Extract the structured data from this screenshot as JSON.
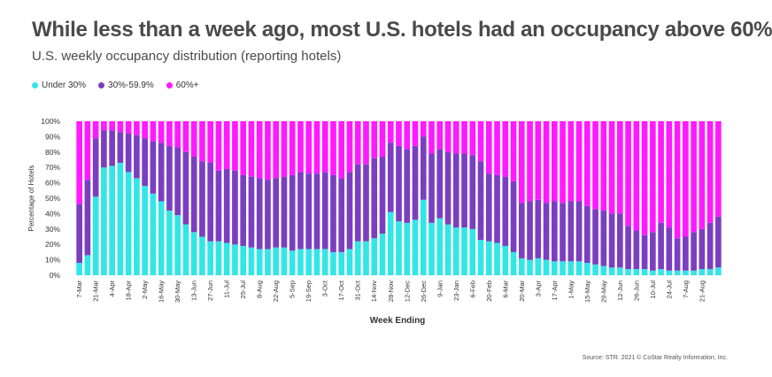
{
  "header": {
    "title": "While less than a week ago, most U.S. hotels had an occupancy above 60%",
    "subtitle": "U.S. weekly occupancy distribution (reporting hotels)"
  },
  "legend": {
    "items": [
      {
        "label": "Under 30%",
        "color": "#33e6e6"
      },
      {
        "label": "30%-59.9%",
        "color": "#7a3fbf"
      },
      {
        "label": "60%+",
        "color": "#ff1aff"
      }
    ]
  },
  "footer": {
    "source": "Source: STR. 2021 © CoStar Realty Information, Inc."
  },
  "chart_data": {
    "type": "bar",
    "stacked": true,
    "xlabel": "Week Ending",
    "ylabel": "Percentage of Hotels",
    "ylim": [
      0,
      100
    ],
    "y_ticks": [
      "0%",
      "10%",
      "20%",
      "30%",
      "40%",
      "50%",
      "60%",
      "70%",
      "80%",
      "90%",
      "100%"
    ],
    "x_tick_labels": [
      "7-Mar",
      "21-Mar",
      "4-Apr",
      "18-Apr",
      "2-May",
      "16-May",
      "30-May",
      "13-Jun",
      "27-Jun",
      "11-Jul",
      "25-Jul",
      "8-Aug",
      "22-Aug",
      "5-Sep",
      "19-Sep",
      "3-Oct",
      "17-Oct",
      "31-Oct",
      "14-Nov",
      "28-Nov",
      "12-Dec",
      "26-Dec",
      "9-Jan",
      "23-Jan",
      "6-Feb",
      "20-Feb",
      "6-Mar",
      "20-Mar",
      "3-Apr",
      "17-Apr",
      "1-May",
      "15-May",
      "29-May",
      "12-Jun",
      "26-Jun",
      "10-Jul",
      "24-Jul",
      "7-Aug",
      "21-Aug"
    ],
    "series": [
      {
        "name": "Under 30%",
        "color": "#33e6e6",
        "values": [
          8,
          13,
          51,
          70,
          71,
          73,
          67,
          63,
          58,
          53,
          48,
          42,
          39,
          33,
          28,
          25,
          22,
          22,
          21,
          20,
          19,
          18,
          17,
          17,
          18,
          18,
          16,
          17,
          17,
          17,
          17,
          15,
          15,
          17,
          22,
          22,
          24,
          27,
          41,
          35,
          34,
          36,
          49,
          34,
          37,
          33,
          31,
          31,
          30,
          23,
          22,
          21,
          19,
          15,
          11,
          10,
          11,
          10,
          9,
          9,
          9,
          9,
          8,
          7,
          6,
          5,
          5,
          4,
          4,
          4,
          3,
          4,
          3,
          3,
          3,
          3,
          4,
          4,
          5
        ]
      },
      {
        "name": "30%-59.9%",
        "color": "#7a3fbf",
        "values": [
          38,
          49,
          38,
          24,
          23,
          20,
          25,
          28,
          31,
          34,
          38,
          42,
          44,
          47,
          49,
          49,
          51,
          46,
          48,
          48,
          46,
          46,
          46,
          45,
          45,
          46,
          49,
          50,
          49,
          49,
          50,
          50,
          48,
          50,
          50,
          50,
          52,
          50,
          45,
          49,
          48,
          48,
          41,
          45,
          45,
          47,
          48,
          48,
          48,
          51,
          44,
          44,
          45,
          46,
          36,
          38,
          38,
          37,
          39,
          38,
          39,
          39,
          37,
          36,
          36,
          35,
          35,
          28,
          25,
          22,
          25,
          30,
          28,
          21,
          22,
          25,
          26,
          30,
          33
        ]
      },
      {
        "name": "60%+",
        "color": "#ff1aff",
        "values": [
          54,
          38,
          11,
          6,
          6,
          7,
          8,
          9,
          11,
          13,
          14,
          16,
          17,
          20,
          23,
          26,
          27,
          32,
          31,
          32,
          35,
          36,
          37,
          38,
          37,
          36,
          35,
          33,
          34,
          34,
          33,
          35,
          37,
          33,
          28,
          28,
          24,
          23,
          14,
          16,
          18,
          16,
          10,
          21,
          18,
          20,
          21,
          21,
          22,
          26,
          34,
          35,
          36,
          39,
          53,
          52,
          51,
          53,
          52,
          53,
          52,
          52,
          55,
          57,
          58,
          60,
          60,
          68,
          71,
          74,
          72,
          66,
          69,
          76,
          75,
          72,
          70,
          66,
          62
        ]
      }
    ]
  }
}
